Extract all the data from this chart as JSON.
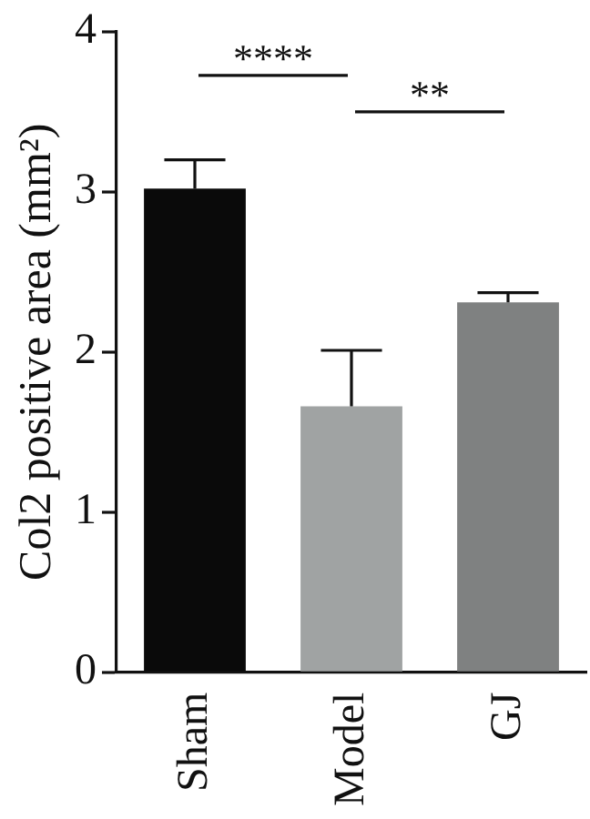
{
  "chart_data": {
    "type": "bar",
    "ylabel": "Col2 positive area (mm²)",
    "categories": [
      "Sham",
      "Model",
      "GJ"
    ],
    "values": [
      3.02,
      1.66,
      2.31
    ],
    "colors": [
      "#0a0a0a",
      "#a0a3a3",
      "#7f8181"
    ],
    "errors": [
      [
        3.02,
        3.2
      ],
      [
        1.66,
        2.01
      ],
      [
        2.31,
        2.37
      ]
    ],
    "ylim": [
      0,
      4
    ],
    "yticks": [
      0,
      1,
      2,
      3,
      4
    ],
    "grid": false,
    "legend": false,
    "annotations": [
      "****",
      "**"
    ]
  }
}
